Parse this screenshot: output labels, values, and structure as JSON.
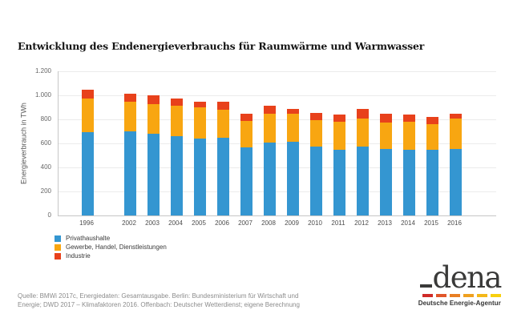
{
  "chart_data": {
    "type": "bar",
    "stacked": true,
    "title": "Entwicklung des Endenergieverbrauchs für Raumwärme und Warmwasser",
    "ylabel": "Energieverbrauch in TWh",
    "xlabel": "",
    "unit": "TWh",
    "ylim": [
      0,
      1200
    ],
    "ytick_values": [
      0,
      200,
      400,
      600,
      800,
      1000,
      1200
    ],
    "ytick_labels": [
      "0",
      "200",
      "400",
      "600",
      "800",
      "1.000",
      "1.200"
    ],
    "grid": true,
    "legend_position": "bottom-left",
    "categories": [
      "1996",
      "2002",
      "2003",
      "2004",
      "2005",
      "2006",
      "2007",
      "2008",
      "2009",
      "2010",
      "2011",
      "2012",
      "2013",
      "2014",
      "2015",
      "2016"
    ],
    "series": [
      {
        "name": "Privathaushalte",
        "color": "#3496d1",
        "values": [
          695,
          700,
          680,
          660,
          640,
          650,
          565,
          610,
          615,
          575,
          545,
          575,
          555,
          550,
          545,
          555
        ]
      },
      {
        "name": "Gewerbe, Handel, Dienstleistungen",
        "color": "#f8a611",
        "values": [
          280,
          250,
          245,
          255,
          260,
          230,
          220,
          240,
          230,
          220,
          235,
          235,
          220,
          230,
          215,
          250
        ]
      },
      {
        "name": "Industrie",
        "color": "#e8411b",
        "values": [
          75,
          65,
          75,
          60,
          50,
          65,
          60,
          65,
          45,
          60,
          60,
          75,
          70,
          60,
          60,
          45
        ]
      }
    ]
  },
  "footer": {
    "line1": "Quelle: BMWi 2017c, Energiedaten: Gesamtausgabe. Berlin: Bundesministerium für Wirtschaft und",
    "line2": "Energie; DWD 2017 – Klimafaktoren 2016. Offenbach: Deutscher Wetterdienst; eigene Berechnung"
  },
  "logo": {
    "wordmark": "dena",
    "subtitle": "Deutsche Energie-Agentur",
    "dash_colors": [
      "#cf2a27",
      "#e1562a",
      "#e87f24",
      "#efa01f",
      "#f4b819",
      "#f8d00e"
    ]
  }
}
